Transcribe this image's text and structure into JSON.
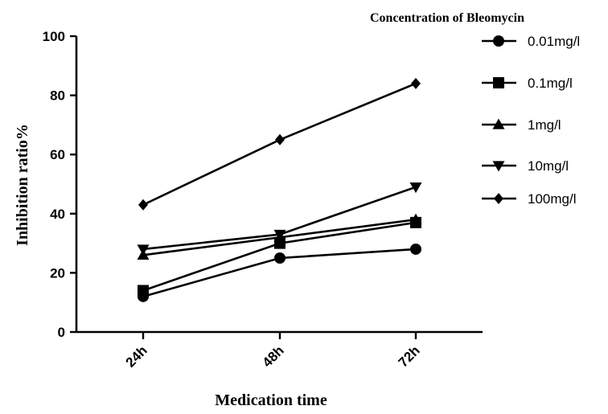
{
  "chart_data": {
    "type": "line",
    "categories": [
      "24h",
      "48h",
      "72h"
    ],
    "xlabel": "Medication time",
    "ylabel": "Inhibition ratio%",
    "ylim": [
      0,
      100
    ],
    "yticks": [
      0,
      20,
      40,
      60,
      80,
      100
    ],
    "grid": false,
    "legend": {
      "title": "Concentration of Bleomycin",
      "placement": "top-right"
    },
    "series": [
      {
        "name": "0.01mg/l",
        "marker": "circle",
        "values": [
          12,
          25,
          28
        ]
      },
      {
        "name": "0.1mg/l",
        "marker": "square",
        "values": [
          14,
          30,
          37
        ]
      },
      {
        "name": "1mg/l",
        "marker": "triangle-up",
        "values": [
          26,
          32,
          38
        ]
      },
      {
        "name": "10mg/l",
        "marker": "triangle-down",
        "values": [
          28,
          33,
          49
        ]
      },
      {
        "name": "100mg/l",
        "marker": "diamond",
        "values": [
          43,
          65,
          84
        ]
      }
    ]
  }
}
